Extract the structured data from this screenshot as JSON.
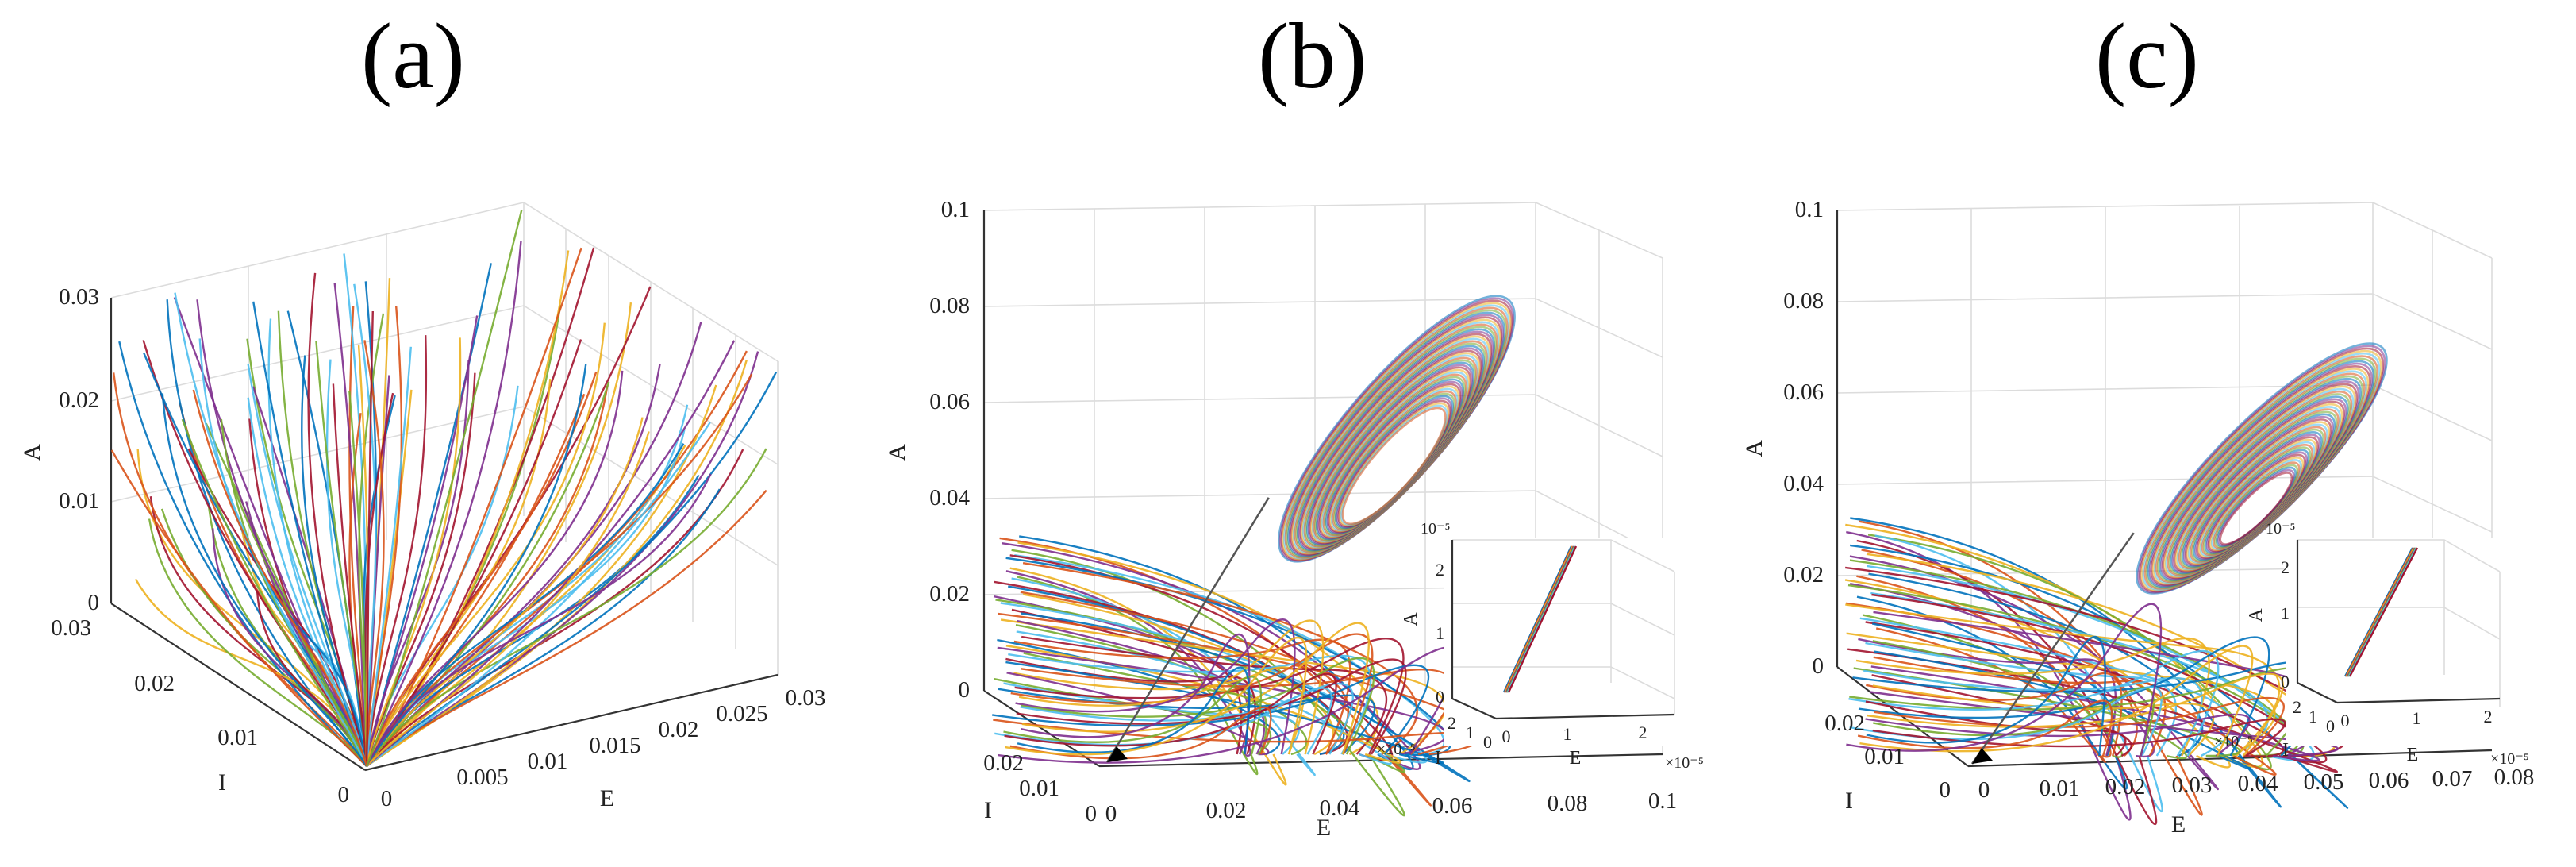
{
  "palette": [
    "#0072BD",
    "#D95319",
    "#EDB120",
    "#7E2F8E",
    "#77AC30",
    "#4DBEEE",
    "#A2142F"
  ],
  "panels": [
    {
      "label": "(a)",
      "axes": {
        "x": "E",
        "y": "I",
        "z": "A"
      },
      "e_ticks": [
        "0",
        "0.005",
        "0.01",
        "0.015",
        "0.02",
        "0.025",
        "0.03"
      ],
      "i_ticks": [
        "0",
        "0.01",
        "0.02",
        "0.03"
      ],
      "a_ticks": [
        "0",
        "0.01",
        "0.02",
        "0.03"
      ]
    },
    {
      "label": "(b)",
      "axes": {
        "x": "E",
        "y": "I",
        "z": "A"
      },
      "e_ticks": [
        "0",
        "0.02",
        "0.04",
        "0.06",
        "0.08",
        "0.1"
      ],
      "i_ticks": [
        "0",
        "0.01",
        "0.02"
      ],
      "a_ticks": [
        "0",
        "0.02",
        "0.04",
        "0.06",
        "0.08",
        "0.1"
      ],
      "inset": {
        "axes": {
          "x": "E",
          "y": "I",
          "z": "A"
        },
        "e_ticks": [
          "0",
          "1",
          "2"
        ],
        "i_ticks": [
          "0",
          "1",
          "2"
        ],
        "a_ticks": [
          "0",
          "1",
          "2"
        ],
        "exponent": "×10⁻⁵",
        "exponent_short": "10⁻⁵"
      }
    },
    {
      "label": "(c)",
      "axes": {
        "x": "E",
        "y": "I",
        "z": "A"
      },
      "e_ticks": [
        "0",
        "0.01",
        "0.02",
        "0.03",
        "0.04",
        "0.05",
        "0.06",
        "0.07",
        "0.08"
      ],
      "i_ticks": [
        "0",
        "0.01",
        "0.02"
      ],
      "a_ticks": [
        "0",
        "0.02",
        "0.04",
        "0.06",
        "0.08",
        "0.1"
      ],
      "inset": {
        "axes": {
          "x": "E",
          "y": "I",
          "z": "A"
        },
        "e_ticks": [
          "0",
          "1",
          "2"
        ],
        "i_ticks": [
          "0",
          "1",
          "2"
        ],
        "a_ticks": [
          "0",
          "1",
          "2"
        ],
        "exponent": "×10⁻⁵",
        "exponent_short": "10⁻⁵"
      }
    }
  ],
  "chart_data": [
    {
      "type": "line",
      "projection": "3d",
      "title": "(a)",
      "xlabel": "E",
      "ylabel": "I",
      "zlabel": "A",
      "xlim": [
        0,
        0.03
      ],
      "ylim": [
        0,
        0.03
      ],
      "zlim": [
        0,
        0.03
      ],
      "description_of_marks": "family of trajectories converging to origin",
      "equilibrium": [
        0,
        0,
        0
      ]
    },
    {
      "type": "line",
      "projection": "3d",
      "title": "(b)",
      "xlabel": "E",
      "ylabel": "I",
      "zlabel": "A",
      "xlim": [
        0,
        0.1
      ],
      "ylim": [
        0,
        0.02
      ],
      "zlim": [
        0,
        0.1
      ],
      "limit_cycle_peak_A": 0.08,
      "inset": {
        "xlim": [
          0,
          2
        ],
        "ylim": [
          0,
          2
        ],
        "zlim": [
          0,
          2
        ],
        "scale": "1e-5"
      }
    },
    {
      "type": "line",
      "projection": "3d",
      "title": "(c)",
      "xlabel": "E",
      "ylabel": "I",
      "zlabel": "A",
      "xlim": [
        0,
        0.08
      ],
      "ylim": [
        0,
        0.02
      ],
      "zlim": [
        0,
        0.1
      ],
      "spiral_peak_A": 0.07,
      "inset": {
        "xlim": [
          0,
          2
        ],
        "ylim": [
          0,
          2
        ],
        "zlim": [
          0,
          2
        ],
        "scale": "1e-5"
      }
    }
  ]
}
